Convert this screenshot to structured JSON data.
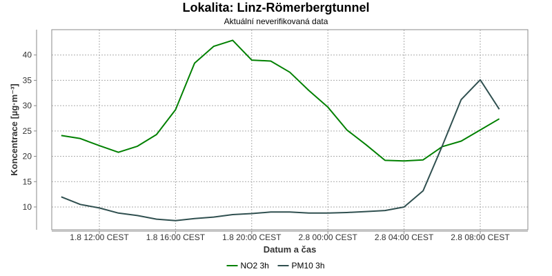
{
  "chart_data": {
    "type": "line",
    "title": "Lokalita: Linz-Römerbergtunnel",
    "subtitle": "Aktuální neverifikovaná data",
    "xlabel": "Datum a čas",
    "ylabel": "Koncentrace [µg·m⁻³]",
    "x_ticks": [
      "1.8 12:00 CEST",
      "1.8 16:00 CEST",
      "1.8 20:00 CEST",
      "2.8 00:00 CEST",
      "2.8 04:00 CEST",
      "2.8 08:00 CEST"
    ],
    "x_tick_hours": [
      12,
      16,
      20,
      24,
      28,
      32
    ],
    "y_ticks": [
      10,
      15,
      20,
      25,
      30,
      35,
      40
    ],
    "ylim": [
      5.5,
      45
    ],
    "xlim": [
      9.5,
      34.5
    ],
    "grid": true,
    "legend_position": "bottom",
    "series": [
      {
        "name": "NO2 3h",
        "color": "#008000",
        "x": [
          10,
          11,
          12,
          13,
          14,
          15,
          16,
          17,
          18,
          19,
          20,
          21,
          22,
          23,
          24,
          25,
          26,
          27,
          28,
          29,
          30,
          31,
          32,
          33
        ],
        "values": [
          24.1,
          23.5,
          22.1,
          20.8,
          22.0,
          24.3,
          29.2,
          38.4,
          41.7,
          42.9,
          39.0,
          38.8,
          36.6,
          33.0,
          29.7,
          25.2,
          22.3,
          19.2,
          19.1,
          19.3,
          21.9,
          23.0,
          25.2,
          27.4
        ]
      },
      {
        "name": "PM10 3h",
        "color": "#2f4f4f",
        "x": [
          10,
          11,
          12,
          13,
          14,
          15,
          16,
          17,
          18,
          19,
          20,
          21,
          22,
          23,
          24,
          25,
          26,
          27,
          28,
          29,
          30,
          31,
          32,
          33
        ],
        "values": [
          12.0,
          10.5,
          9.8,
          8.8,
          8.3,
          7.6,
          7.3,
          7.7,
          8.0,
          8.5,
          8.7,
          9.0,
          9.0,
          8.8,
          8.8,
          8.9,
          9.1,
          9.3,
          10.0,
          13.2,
          22.0,
          31.2,
          35.1,
          29.3
        ]
      }
    ]
  }
}
